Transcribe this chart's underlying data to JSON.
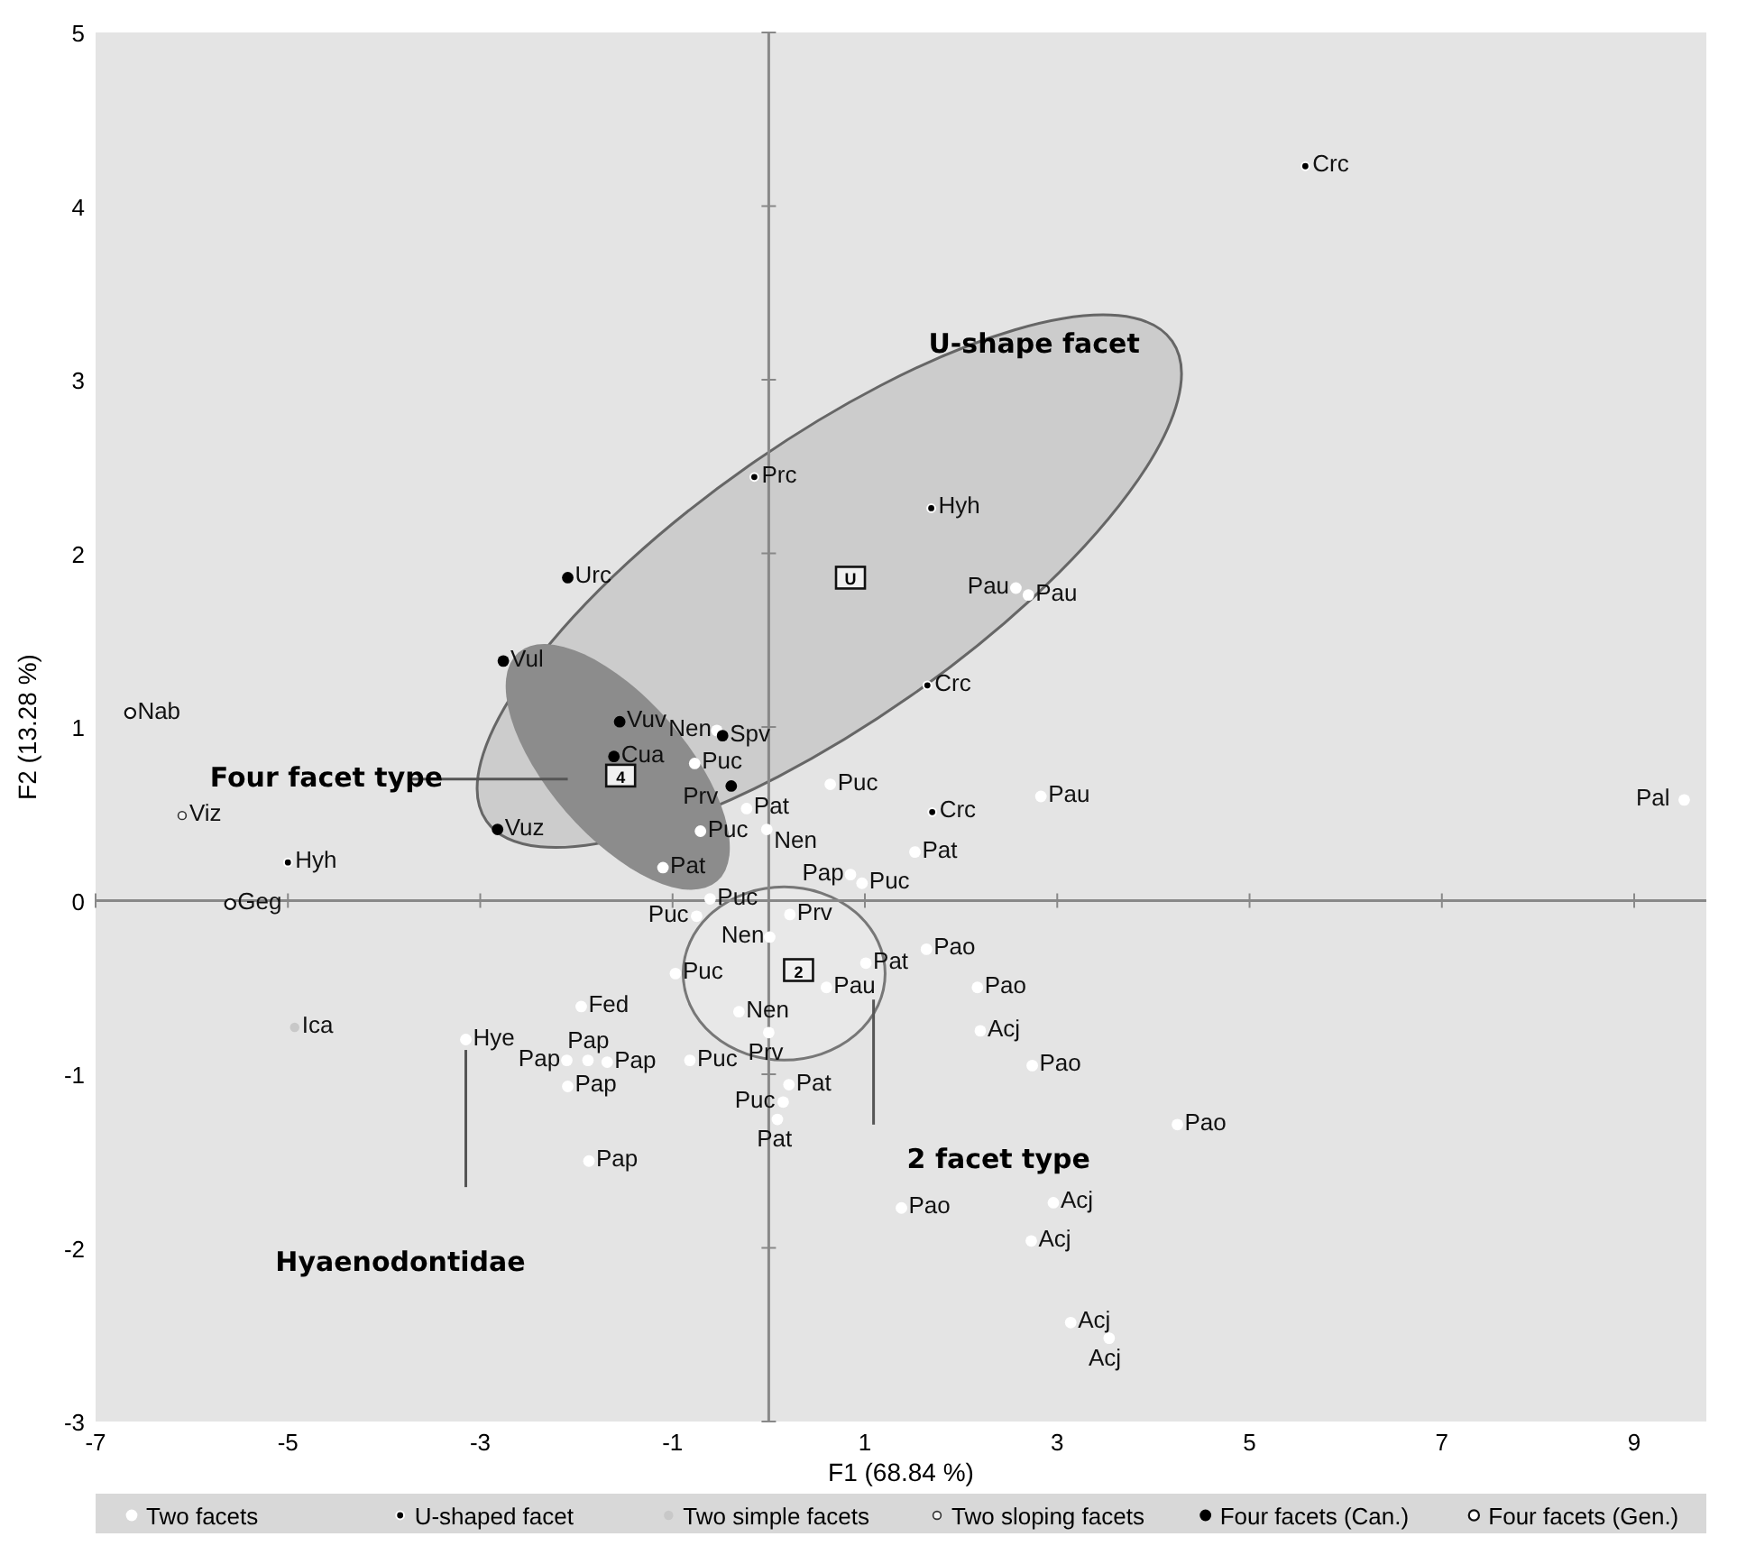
{
  "chart_data": {
    "type": "scatter",
    "xlabel": "F1 (68.84 %)",
    "ylabel": "F2 (13.28 %)",
    "xlim": [
      -7,
      9.75
    ],
    "ylim": [
      -3,
      5
    ],
    "xticks": [
      -7,
      -5,
      -3,
      -1,
      1,
      3,
      5,
      7,
      9
    ],
    "yticks": [
      -3,
      -2,
      -1,
      0,
      1,
      2,
      3,
      4,
      5
    ],
    "legend": "bottom",
    "marker": "circle",
    "series": [
      {
        "name": "Two facets",
        "color": "#ffffff",
        "x": [
          -0.54,
          -0.77,
          -0.23,
          -0.71,
          -0.02,
          -1.1,
          -0.61,
          0.64,
          0.85,
          0.97,
          1.52,
          2.83,
          0.22,
          0.01,
          1.01,
          0.6,
          1.64,
          2.17,
          -0.75,
          -0.97,
          -1.95,
          -3.15,
          -2.1,
          -1.88,
          -1.68,
          -2.09,
          -1.87,
          -0.31,
          -0.82,
          0.0,
          0.21,
          0.15,
          0.09,
          2.2,
          2.74,
          4.25,
          1.38,
          2.96,
          2.73,
          3.14,
          3.54,
          2.57,
          2.7,
          9.52
        ],
        "values": [
          0.98,
          0.79,
          0.53,
          0.4,
          0.41,
          0.19,
          0.01,
          0.67,
          0.15,
          0.1,
          0.28,
          0.6,
          -0.08,
          -0.21,
          -0.36,
          -0.5,
          -0.28,
          -0.5,
          -0.09,
          -0.42,
          -0.61,
          -0.8,
          -0.92,
          -0.92,
          -0.93,
          -1.07,
          -1.5,
          -0.64,
          -0.92,
          -0.76,
          -1.06,
          -1.16,
          -1.26,
          -0.75,
          -0.95,
          -1.29,
          -1.77,
          -1.74,
          -1.96,
          -2.43,
          -2.52,
          1.8,
          1.76,
          0.58
        ],
        "value_labels": [
          "Nen",
          "Puc",
          "Pat",
          "Puc",
          "Nen",
          "Pat",
          "Puc",
          "Puc",
          "Pap",
          "Puc",
          "Pat",
          "Pau",
          "Prv",
          "Nen",
          "Pat",
          "Pau",
          "Pao",
          "Pao",
          "Puc",
          "Puc",
          "Fed",
          "Hye",
          "Pap",
          "Pap",
          "Pap",
          "Pap",
          "Pap",
          "Nen",
          "Puc",
          "Prv",
          "Pat",
          "Puc",
          "Pat",
          "Acj",
          "Pao",
          "Pao",
          "Pao",
          "Acj",
          "Acj",
          "Acj",
          "Acj",
          "Pau",
          "Pau",
          "Pal"
        ]
      },
      {
        "name": "U-shaped facet",
        "color": "#000000",
        "x": [
          5.58,
          -0.15,
          1.69,
          1.65,
          1.7,
          -5.0
        ],
        "values": [
          4.23,
          2.44,
          2.26,
          1.24,
          0.51,
          0.22
        ],
        "value_labels": [
          "Crc",
          "Prc",
          "Hyh",
          "Crc",
          "Crc",
          "Hyh"
        ]
      },
      {
        "name": "Two simple facets",
        "color": "#c8c8c8",
        "x": [
          -4.93
        ],
        "values": [
          -0.73
        ],
        "value_labels": [
          "Ica"
        ]
      },
      {
        "name": "Two sloping facets",
        "color": "#f4f4f4",
        "x": [
          -6.1
        ],
        "values": [
          0.49
        ],
        "value_labels": [
          "Viz"
        ]
      },
      {
        "name": "Four facets (Can.)",
        "color": "#000000",
        "x": [
          -2.09,
          -2.76,
          -1.55,
          -1.61,
          -2.82,
          -0.48,
          -0.39
        ],
        "values": [
          1.86,
          1.38,
          1.03,
          0.83,
          0.41,
          0.95,
          0.66
        ],
        "value_labels": [
          "Urc",
          "Vul",
          "Vuv",
          "Cua",
          "Vuz",
          "Spv",
          "Prv"
        ]
      },
      {
        "name": "Four facets (Gen.)",
        "color": "#ffffff",
        "x": [
          -6.64,
          -5.6
        ],
        "values": [
          1.08,
          -0.02
        ],
        "value_labels": [
          "Nab",
          "Geg"
        ]
      }
    ],
    "annotations": [
      "U-shape facet",
      "Four facet type",
      "2 facet type",
      "Hyaenodontidae",
      {
        "text": "U",
        "x": 0.85,
        "y": 1.86
      },
      {
        "text": "4",
        "x": -1.54,
        "y": 0.72
      },
      {
        "text": "2",
        "x": 0.31,
        "y": -0.4
      }
    ]
  }
}
